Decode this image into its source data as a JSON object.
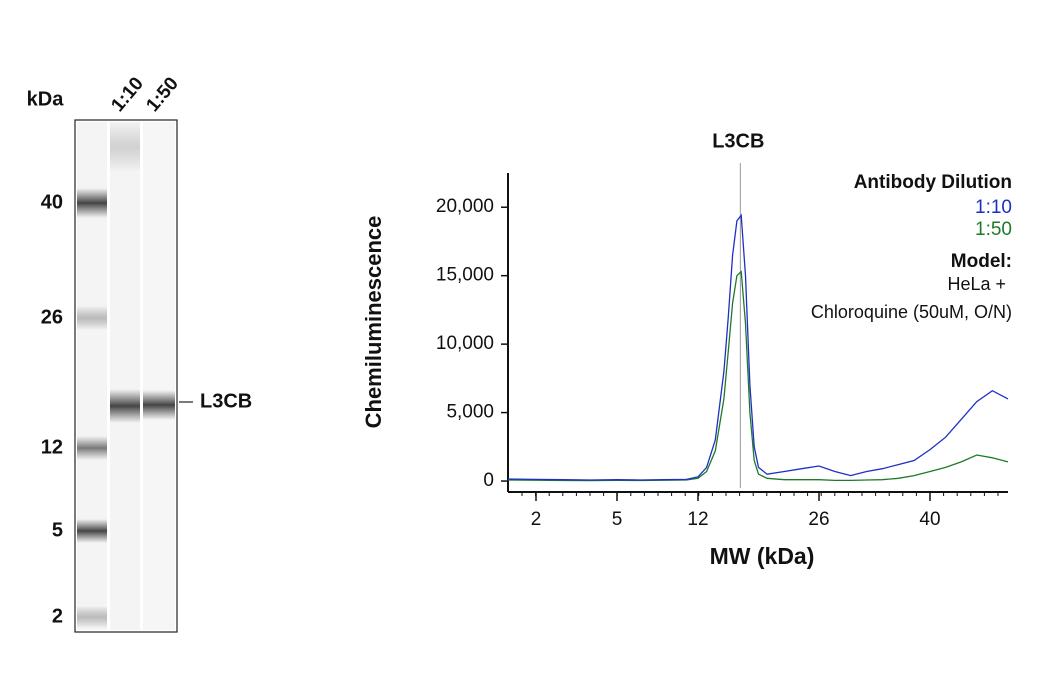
{
  "blot": {
    "unit_label": "kDa",
    "lanes": [
      "1:10",
      "1:50"
    ],
    "markers": [
      40,
      26,
      12,
      5,
      2
    ],
    "band_label": "L3CB"
  },
  "chart_data": {
    "type": "line",
    "x_label": "MW (kDa)",
    "y_label": "Chemiluminescence",
    "annotation": {
      "text": "L3CB",
      "x": 16.9
    },
    "legend_title": "Antibody Dilution",
    "model_label": "Model:",
    "model_lines": [
      "HeLa +",
      "Chloroquine (50uM, O/N)"
    ],
    "x": [
      1,
      2,
      3,
      4,
      5,
      7,
      9,
      11,
      12,
      13,
      14,
      15,
      15.5,
      16,
      16.5,
      17,
      17.5,
      18,
      18.5,
      19,
      20,
      22,
      24,
      26,
      28,
      30,
      32,
      34,
      36,
      38,
      40,
      42,
      44,
      46,
      48,
      50
    ],
    "series": [
      {
        "name": "1:10",
        "color": "#1f2fc4",
        "values": [
          150,
          120,
          100,
          80,
          100,
          80,
          100,
          120,
          300,
          1000,
          3000,
          8000,
          12000,
          16500,
          19000,
          19400,
          15000,
          7000,
          2500,
          1000,
          500,
          700,
          900,
          1100,
          700,
          400,
          700,
          900,
          1200,
          1500,
          2300,
          3200,
          4500,
          5800,
          6600,
          6000
        ]
      },
      {
        "name": "1:50",
        "color": "#1e7a2a",
        "values": [
          80,
          60,
          40,
          30,
          50,
          40,
          60,
          80,
          200,
          700,
          2200,
          6000,
          9500,
          13000,
          15000,
          15300,
          11500,
          5000,
          1500,
          500,
          200,
          100,
          100,
          100,
          50,
          50,
          80,
          100,
          200,
          400,
          700,
          1000,
          1400,
          1900,
          1700,
          1400
        ]
      }
    ],
    "xlim": [
      1,
      50
    ],
    "xticks": [
      2,
      5,
      12,
      26,
      40
    ],
    "ylim": [
      -800,
      22500
    ],
    "yticks": [
      0,
      {
        "value": 5000,
        "label": "5,000"
      },
      {
        "value": 10000,
        "label": "10,000"
      },
      {
        "value": 15000,
        "label": "15,000"
      },
      {
        "value": 20000,
        "label": "20,000"
      }
    ]
  }
}
